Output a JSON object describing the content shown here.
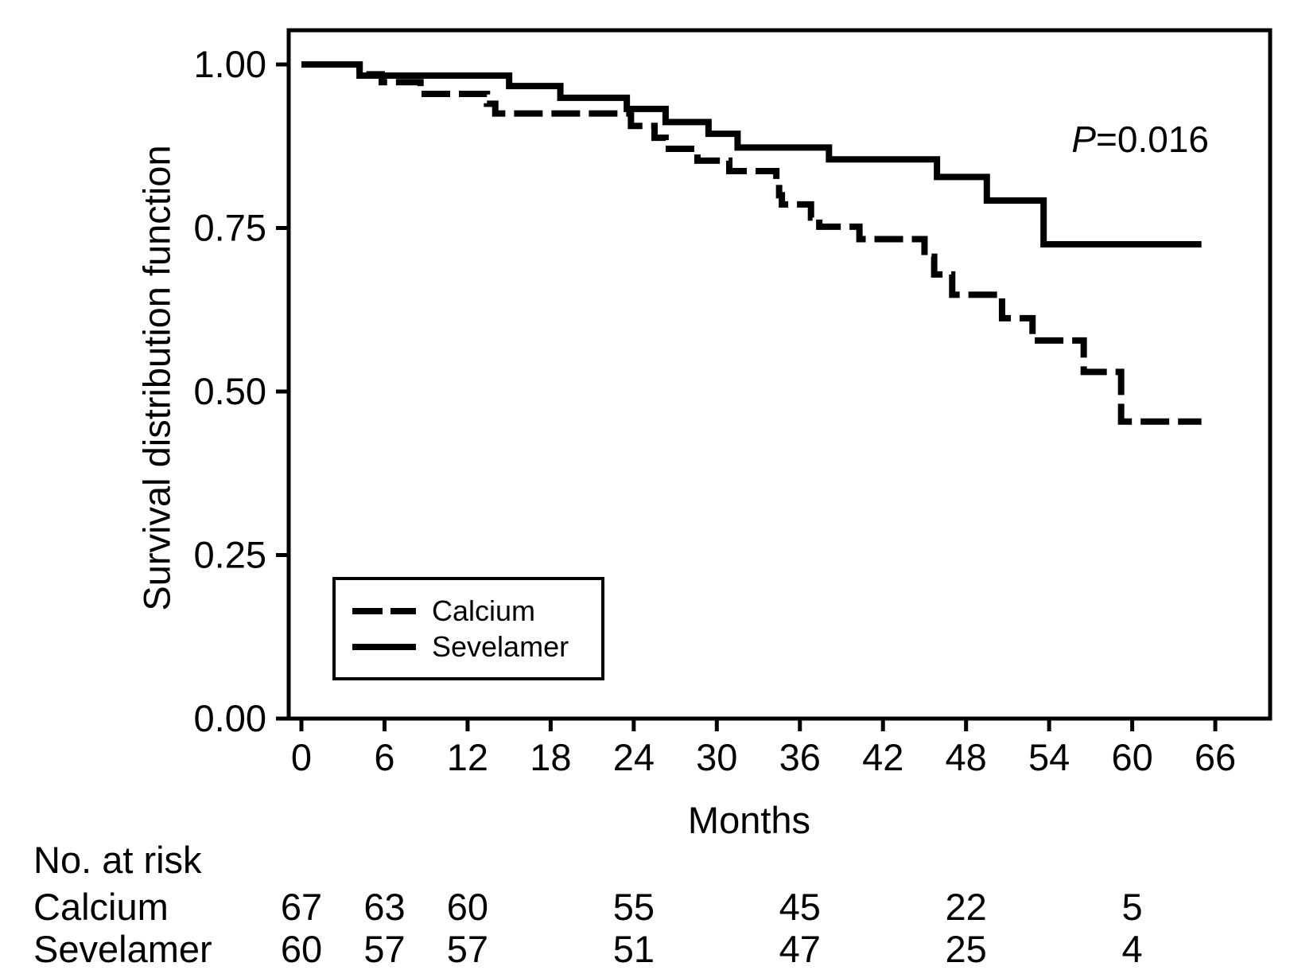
{
  "chart_data": {
    "type": "line",
    "subtype": "kaplan-meier-step-curves",
    "title": "",
    "xlabel": "Months",
    "ylabel": "Survival distribution function",
    "annotation": {
      "symbol": "P",
      "rest": "=0.016"
    },
    "x_axis": {
      "min": 0,
      "max": 66,
      "ticks": [
        0,
        6,
        12,
        18,
        24,
        30,
        36,
        42,
        48,
        54,
        60,
        66
      ]
    },
    "y_axis": {
      "min": 0.0,
      "max": 1.0,
      "ticks": [
        0.0,
        0.25,
        0.5,
        0.75,
        1.0
      ],
      "tick_labels": [
        "0.00",
        "0.25",
        "0.50",
        "0.75",
        "1.00"
      ]
    },
    "grid": false,
    "legend_position": "inside-lower-left",
    "end_month": 65,
    "line_color": "#000000",
    "series": [
      {
        "name": "Calcium",
        "style": "dashed",
        "steps": [
          [
            0,
            1.0
          ],
          [
            4.2,
            0.985
          ],
          [
            5.8,
            0.973
          ],
          [
            8.6,
            0.955
          ],
          [
            13.4,
            0.94
          ],
          [
            14,
            0.925
          ],
          [
            23.8,
            0.906
          ],
          [
            25.5,
            0.888
          ],
          [
            26.3,
            0.871
          ],
          [
            28.6,
            0.853
          ],
          [
            30.9,
            0.837
          ],
          [
            34.3,
            0.819
          ],
          [
            34.5,
            0.8
          ],
          [
            34.7,
            0.786
          ],
          [
            36.8,
            0.766
          ],
          [
            37.4,
            0.752
          ],
          [
            40.3,
            0.733
          ],
          [
            45,
            0.706
          ],
          [
            45.7,
            0.679
          ],
          [
            47,
            0.648
          ],
          [
            50.6,
            0.612
          ],
          [
            52.8,
            0.578
          ],
          [
            56.5,
            0.53
          ],
          [
            59.2,
            0.454
          ]
        ]
      },
      {
        "name": "Sevelamer",
        "style": "solid",
        "steps": [
          [
            0,
            1.0
          ],
          [
            4.2,
            0.983
          ],
          [
            15,
            0.967
          ],
          [
            18.7,
            0.949
          ],
          [
            23.5,
            0.932
          ],
          [
            26.3,
            0.912
          ],
          [
            29.4,
            0.894
          ],
          [
            31.5,
            0.873
          ],
          [
            38.1,
            0.855
          ],
          [
            45.9,
            0.828
          ],
          [
            49.5,
            0.792
          ],
          [
            53.6,
            0.725
          ]
        ]
      }
    ]
  },
  "risk_table": {
    "title": "No. at risk",
    "columns_months": [
      0,
      6,
      12,
      24,
      36,
      48,
      60
    ],
    "rows": [
      {
        "label": "Calcium",
        "values": [
          "67",
          "63",
          "60",
          "55",
          "45",
          "22",
          "5"
        ]
      },
      {
        "label": "Sevelamer",
        "values": [
          "60",
          "57",
          "57",
          "51",
          "47",
          "25",
          "4"
        ]
      }
    ]
  }
}
